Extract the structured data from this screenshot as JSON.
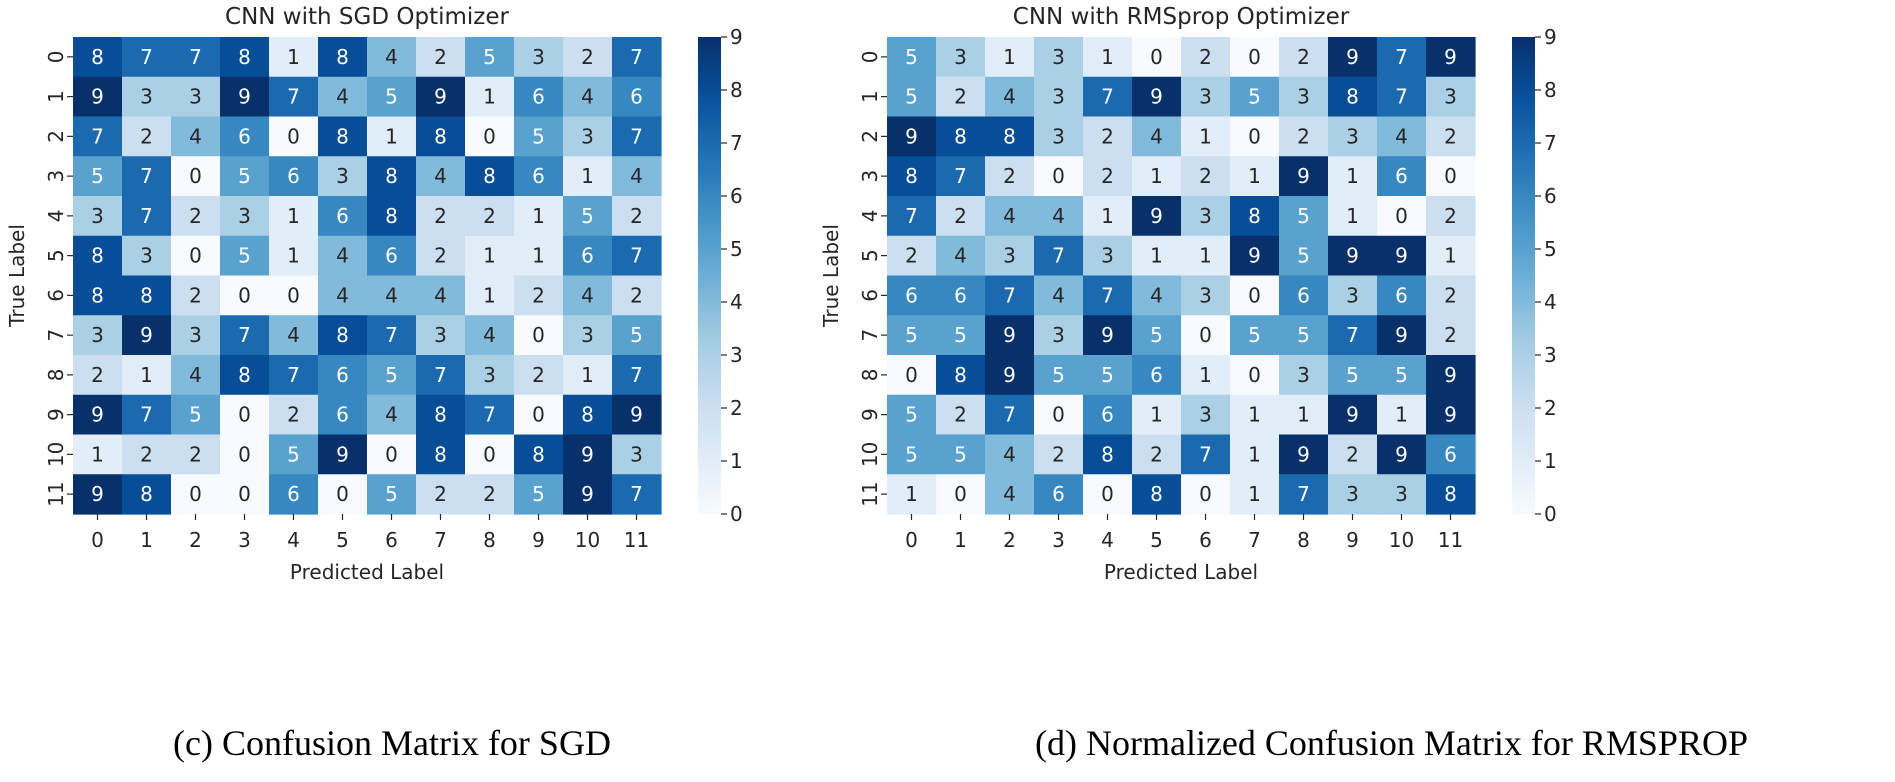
{
  "chart_data": [
    {
      "type": "heatmap",
      "title": "CNN with SGD Optimizer",
      "xlabel": "Predicted Label",
      "ylabel": "True Label",
      "x_ticks": [
        "0",
        "1",
        "2",
        "3",
        "4",
        "5",
        "6",
        "7",
        "8",
        "9",
        "10",
        "11"
      ],
      "y_ticks": [
        "0",
        "1",
        "2",
        "3",
        "4",
        "5",
        "6",
        "7",
        "8",
        "9",
        "10",
        "11"
      ],
      "colorbar_ticks": [
        "0",
        "1",
        "2",
        "3",
        "4",
        "5",
        "6",
        "7",
        "8",
        "9"
      ],
      "vmin": 0,
      "vmax": 9,
      "colormap": "Blues",
      "caption": "(c) Confusion Matrix for SGD",
      "matrix": [
        [
          8,
          7,
          7,
          8,
          1,
          8,
          4,
          2,
          5,
          3,
          2,
          7
        ],
        [
          9,
          3,
          3,
          9,
          7,
          4,
          5,
          9,
          1,
          6,
          4,
          6
        ],
        [
          7,
          2,
          4,
          6,
          0,
          8,
          1,
          8,
          0,
          5,
          3,
          7
        ],
        [
          5,
          7,
          0,
          5,
          6,
          3,
          8,
          4,
          8,
          6,
          1,
          4
        ],
        [
          3,
          7,
          2,
          3,
          1,
          6,
          8,
          2,
          2,
          1,
          5,
          2
        ],
        [
          8,
          3,
          0,
          5,
          1,
          4,
          6,
          2,
          1,
          1,
          6,
          7
        ],
        [
          8,
          8,
          2,
          0,
          0,
          4,
          4,
          4,
          1,
          2,
          4,
          2
        ],
        [
          3,
          9,
          3,
          7,
          4,
          8,
          7,
          3,
          4,
          0,
          3,
          5
        ],
        [
          2,
          1,
          4,
          8,
          7,
          6,
          5,
          7,
          3,
          2,
          1,
          7
        ],
        [
          9,
          7,
          5,
          0,
          2,
          6,
          4,
          8,
          7,
          0,
          8,
          9
        ],
        [
          1,
          2,
          2,
          0,
          5,
          9,
          0,
          8,
          0,
          8,
          9,
          3
        ],
        [
          9,
          8,
          0,
          0,
          6,
          0,
          5,
          2,
          2,
          5,
          9,
          7
        ]
      ]
    },
    {
      "type": "heatmap",
      "title": "CNN with RMSprop Optimizer",
      "xlabel": "Predicted Label",
      "ylabel": "True Label",
      "x_ticks": [
        "0",
        "1",
        "2",
        "3",
        "4",
        "5",
        "6",
        "7",
        "8",
        "9",
        "10",
        "11"
      ],
      "y_ticks": [
        "0",
        "1",
        "2",
        "3",
        "4",
        "5",
        "6",
        "7",
        "8",
        "9",
        "10",
        "11"
      ],
      "colorbar_ticks": [
        "0",
        "1",
        "2",
        "3",
        "4",
        "5",
        "6",
        "7",
        "8",
        "9"
      ],
      "vmin": 0,
      "vmax": 9,
      "colormap": "Blues",
      "caption": "(d) Normalized Confusion Matrix for RMSPROP",
      "matrix": [
        [
          5,
          3,
          1,
          3,
          1,
          0,
          2,
          0,
          2,
          9,
          7,
          9
        ],
        [
          5,
          2,
          4,
          3,
          7,
          9,
          3,
          5,
          3,
          8,
          7,
          3
        ],
        [
          9,
          8,
          8,
          3,
          2,
          4,
          1,
          0,
          2,
          3,
          4,
          2
        ],
        [
          8,
          7,
          2,
          0,
          2,
          1,
          2,
          1,
          9,
          1,
          6,
          0
        ],
        [
          7,
          2,
          4,
          4,
          1,
          9,
          3,
          8,
          5,
          1,
          0,
          2
        ],
        [
          2,
          4,
          3,
          7,
          3,
          1,
          1,
          9,
          5,
          9,
          9,
          1
        ],
        [
          6,
          6,
          7,
          4,
          7,
          4,
          3,
          0,
          6,
          3,
          6,
          2
        ],
        [
          5,
          5,
          9,
          3,
          9,
          5,
          0,
          5,
          5,
          7,
          9,
          2
        ],
        [
          0,
          8,
          9,
          5,
          5,
          6,
          1,
          0,
          3,
          5,
          5,
          9
        ],
        [
          5,
          2,
          7,
          0,
          6,
          1,
          3,
          1,
          1,
          9,
          1,
          9
        ],
        [
          5,
          5,
          4,
          2,
          8,
          2,
          7,
          1,
          9,
          2,
          9,
          6
        ],
        [
          1,
          0,
          4,
          6,
          0,
          8,
          0,
          1,
          7,
          3,
          3,
          8
        ]
      ]
    }
  ]
}
